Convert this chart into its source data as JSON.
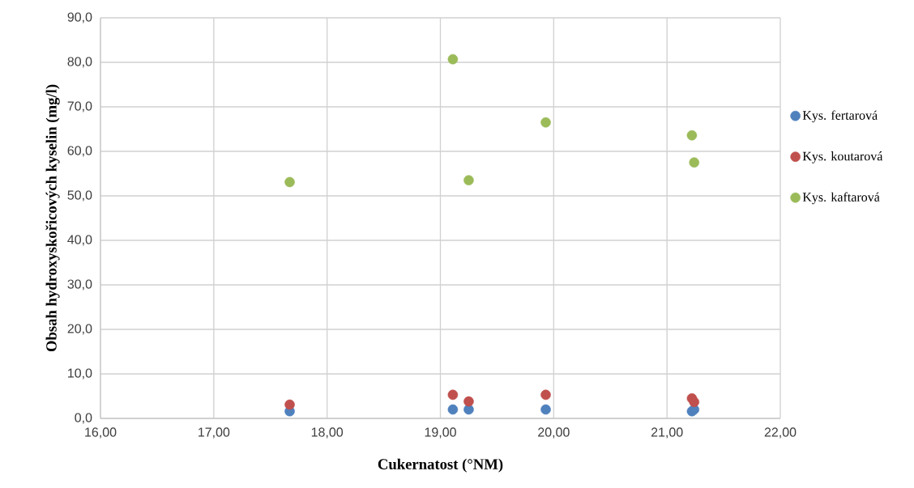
{
  "chart_data": {
    "type": "scatter",
    "xlabel": "Cukernatost (°NM)",
    "ylabel": "Obsah hydroxyskořicových kyselin (mg/l)",
    "x": [
      17.67,
      19.11,
      19.25,
      19.93,
      21.22,
      21.24
    ],
    "series": [
      {
        "name": "Kys. fertarová",
        "color": "#4f81bd",
        "values": [
          1.6,
          2.0,
          2.0,
          2.0,
          1.6,
          2.0
        ]
      },
      {
        "name": "Kys. koutarová",
        "color": "#c0504d",
        "values": [
          3.1,
          5.3,
          3.8,
          5.3,
          4.5,
          3.7
        ]
      },
      {
        "name": "Kys. kaftarová",
        "color": "#9bbb59",
        "values": [
          53.1,
          80.7,
          53.5,
          66.5,
          63.6,
          57.5
        ]
      }
    ],
    "xlim": [
      16,
      22
    ],
    "xticks": [
      {
        "value": 16,
        "label": "16,00"
      },
      {
        "value": 17,
        "label": "17,00"
      },
      {
        "value": 18,
        "label": "18,00"
      },
      {
        "value": 19,
        "label": "19,00"
      },
      {
        "value": 20,
        "label": "20,00"
      },
      {
        "value": 21,
        "label": "21,00"
      },
      {
        "value": 22,
        "label": "22,00"
      }
    ],
    "ylim": [
      0,
      90
    ],
    "yticks": [
      {
        "value": 0,
        "label": "0,0"
      },
      {
        "value": 10,
        "label": "10,0"
      },
      {
        "value": 20,
        "label": "20,0"
      },
      {
        "value": 30,
        "label": "30,0"
      },
      {
        "value": 40,
        "label": "40,0"
      },
      {
        "value": 50,
        "label": "50,0"
      },
      {
        "value": 60,
        "label": "60,0"
      },
      {
        "value": 70,
        "label": "70,0"
      },
      {
        "value": 80,
        "label": "80,0"
      },
      {
        "value": 90,
        "label": "90,0"
      }
    ],
    "grid": true,
    "legend": "right",
    "marker": "circle"
  }
}
